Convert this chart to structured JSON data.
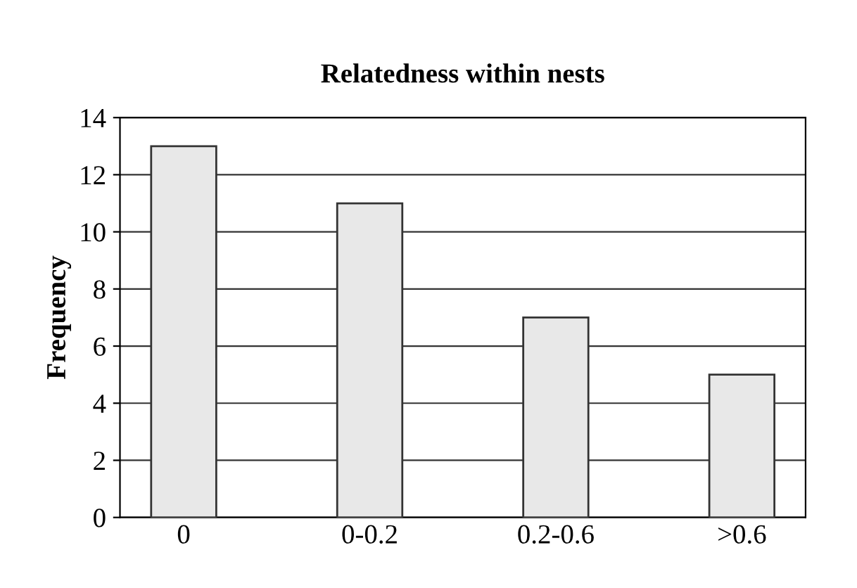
{
  "chart_data": {
    "type": "bar",
    "title": "Relatedness within nests",
    "ylabel": "Frequency",
    "categories": [
      "0",
      "0-0.2",
      "0.2-0.6",
      ">0.6"
    ],
    "values": [
      13,
      11,
      7,
      5
    ],
    "color": "#e8e8e8",
    "ylim": [
      0,
      14
    ],
    "yticks": [
      0,
      2,
      4,
      6,
      8,
      10,
      12,
      14
    ],
    "grid": "y",
    "legend": false
  }
}
